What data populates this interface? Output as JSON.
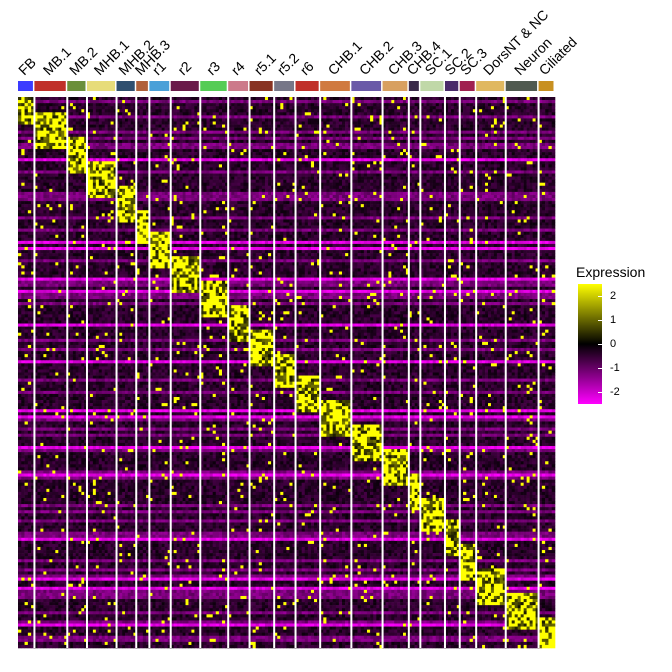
{
  "chart_data": {
    "type": "heatmap",
    "clusters": [
      {
        "name": "FB",
        "color": "#3b3bff",
        "width": 1
      },
      {
        "name": "MB.1",
        "color": "#c0302a",
        "width": 2
      },
      {
        "name": "MB.2",
        "color": "#6b8f3a",
        "width": 1.2
      },
      {
        "name": "MHB.1",
        "color": "#e7dc7a",
        "width": 1.8
      },
      {
        "name": "MHB.2",
        "color": "#2f4f6f",
        "width": 1.2
      },
      {
        "name": "MHB.3",
        "color": "#b0603a",
        "width": 0.8
      },
      {
        "name": "r1",
        "color": "#4aa0d8",
        "width": 1.3
      },
      {
        "name": "r2",
        "color": "#6a1a4a",
        "width": 1.8
      },
      {
        "name": "r3",
        "color": "#55cc55",
        "width": 1.7
      },
      {
        "name": "r4",
        "color": "#cc7a8a",
        "width": 1.3
      },
      {
        "name": "r5.1",
        "color": "#883322",
        "width": 1.5
      },
      {
        "name": "r5.2",
        "color": "#777788",
        "width": 1.3
      },
      {
        "name": "r6",
        "color": "#c0302a",
        "width": 1.5
      },
      {
        "name": "CHB.1",
        "color": "#d07a40",
        "width": 1.9
      },
      {
        "name": "CHB.2",
        "color": "#6a5aa8",
        "width": 1.9
      },
      {
        "name": "CHB.3",
        "color": "#d8a060",
        "width": 1.6
      },
      {
        "name": "CHB.4",
        "color": "#3a2a4a",
        "width": 0.7
      },
      {
        "name": "SC.1",
        "color": "#c0d8a8",
        "width": 1.5
      },
      {
        "name": "SC.2",
        "color": "#4a2a6a",
        "width": 0.9
      },
      {
        "name": "SC.3",
        "color": "#a02050",
        "width": 1.0
      },
      {
        "name": "DorsNT & NC",
        "color": "#e0b860",
        "width": 1.8
      },
      {
        "name": "Neuron",
        "color": "#505a50",
        "width": 2.0
      },
      {
        "name": "Ciliated",
        "color": "#c89020",
        "width": 1.0
      }
    ],
    "n_genes": 180,
    "legend": {
      "title": "Expression",
      "ticks": [
        2,
        1,
        0,
        -1,
        -2
      ],
      "range": [
        -2.5,
        2.5
      ],
      "colors": [
        "#ff00ff",
        "#000000",
        "#ffff00"
      ]
    }
  }
}
